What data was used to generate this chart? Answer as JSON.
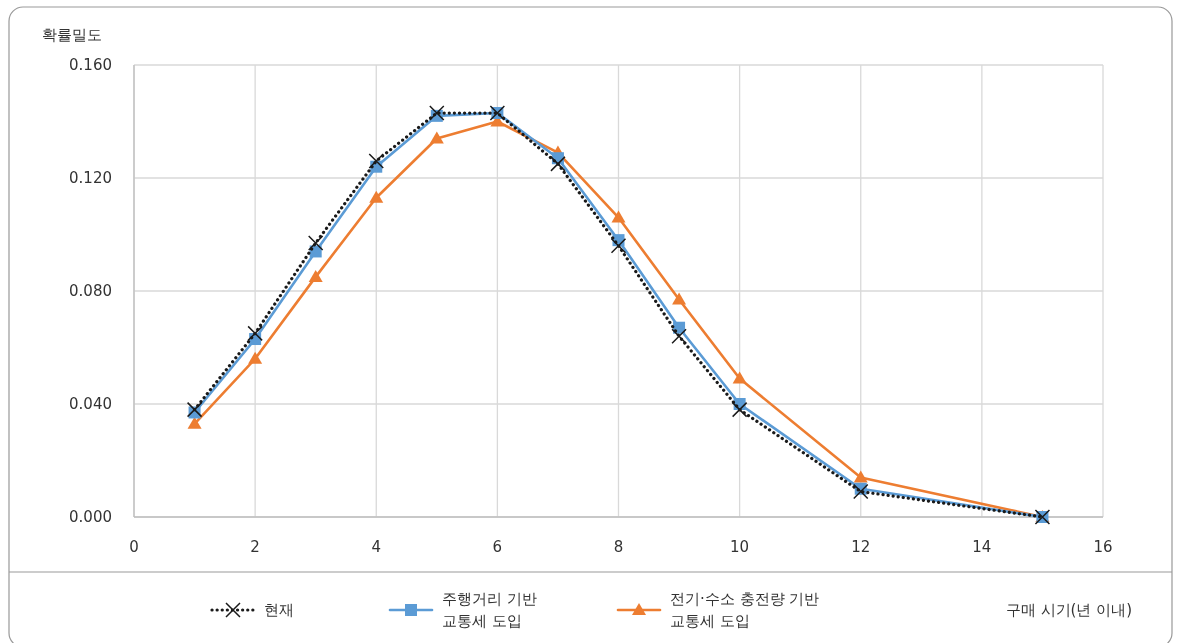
{
  "chart_data": {
    "type": "line",
    "ylabel": "확률밀도",
    "xlabel": "구매 시기(년 이내)",
    "xlim": [
      0,
      16
    ],
    "xticks": [
      0,
      2,
      4,
      6,
      8,
      10,
      12,
      14,
      16
    ],
    "ylim": [
      0,
      0.16
    ],
    "yticks": [
      {
        "value": 0,
        "label": "0.000"
      },
      {
        "value": 0.04,
        "label": "0.040"
      },
      {
        "value": 0.08,
        "label": "0.080"
      },
      {
        "value": 0.12,
        "label": "0.120"
      },
      {
        "value": 0.16,
        "label": "0.160"
      }
    ],
    "grid": true,
    "legend": "bottom",
    "x": [
      1,
      2,
      3,
      4,
      5,
      6,
      7,
      8,
      9,
      10,
      12,
      15
    ],
    "series": [
      {
        "name": "현재",
        "color": "#1a1a1a",
        "marker": "cross",
        "line_style": "dotted",
        "values": [
          0.038,
          0.065,
          0.097,
          0.126,
          0.143,
          0.143,
          0.125,
          0.096,
          0.064,
          0.038,
          0.009,
          0.0
        ]
      },
      {
        "name": "주행거리 기반\n교통세 도입",
        "color": "#5b9bd5",
        "marker": "square",
        "line_style": "solid",
        "values": [
          0.037,
          0.063,
          0.094,
          0.124,
          0.142,
          0.143,
          0.127,
          0.098,
          0.067,
          0.04,
          0.01,
          0.0
        ]
      },
      {
        "name": "전기·수소 충전량 기반\n교통세 도입",
        "color": "#ed7d31",
        "marker": "triangle",
        "line_style": "solid",
        "values": [
          0.033,
          0.056,
          0.085,
          0.113,
          0.134,
          0.14,
          0.129,
          0.106,
          0.077,
          0.049,
          0.014,
          0.0
        ]
      }
    ]
  }
}
